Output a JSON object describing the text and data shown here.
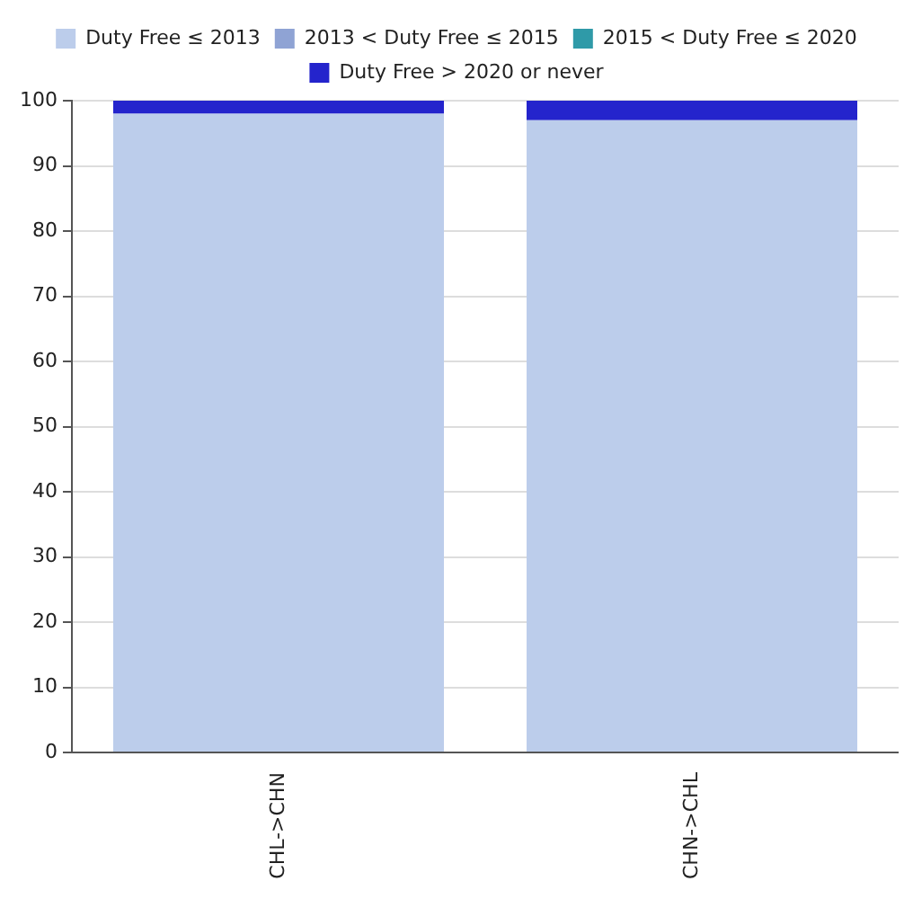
{
  "chart_data": {
    "type": "bar",
    "stacked": true,
    "categories": [
      "CHL->CHN",
      "CHN->CHL"
    ],
    "series": [
      {
        "name": "Duty Free ≤ 2013",
        "color": "#bccdeb",
        "values": [
          98,
          97
        ]
      },
      {
        "name": "2013 < Duty Free ≤ 2015",
        "color": "#8fa3d4",
        "values": [
          0,
          0
        ]
      },
      {
        "name": "2015 < Duty Free ≤ 2020",
        "color": "#2f9aa8",
        "values": [
          0,
          0
        ]
      },
      {
        "name": "Duty Free > 2020 or never",
        "color": "#2424cc",
        "values": [
          2,
          3
        ]
      }
    ],
    "ylim": [
      0,
      100
    ],
    "yticks": [
      0,
      10,
      20,
      30,
      40,
      50,
      60,
      70,
      80,
      90,
      100
    ],
    "grid": "y",
    "legend": "top"
  }
}
